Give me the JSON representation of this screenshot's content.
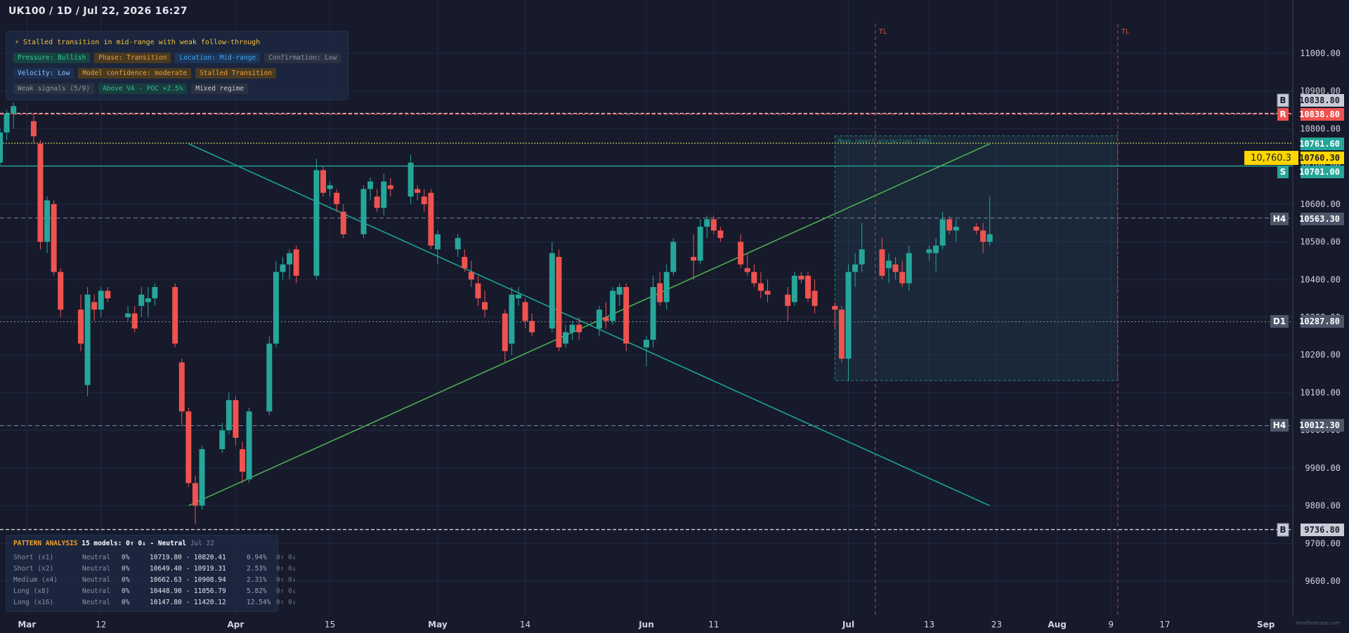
{
  "header": {
    "title": "UK100 / 1D / Jul 22, 2026 16:27"
  },
  "signal_panel": {
    "headline": "⚡ Stalled transition in mid-range with weak follow-through",
    "rows": [
      [
        {
          "text": "Pressure: Bullish",
          "style": "green"
        },
        {
          "text": "Phase: Transition",
          "style": "orange"
        },
        {
          "text": "Location: Mid-range",
          "style": "blue"
        },
        {
          "text": "Confirmation: Low",
          "style": "gray"
        }
      ],
      [
        {
          "text": "Velocity: Low",
          "style": "blue2"
        },
        {
          "text": "Model confidence: moderate",
          "style": "orange"
        },
        {
          "text": "Stalled Transition",
          "style": "orange"
        }
      ],
      [
        {
          "text": "Weak signals (5/9)",
          "style": "gray"
        },
        {
          "text": "Above VA - POC +2.5%",
          "style": "teal"
        },
        {
          "text": "Mixed regime",
          "style": "dark"
        }
      ]
    ]
  },
  "pattern_analysis": {
    "title": "PATTERN ANALYSIS",
    "models": "15 models: 0↑ 0↓ - Neutral",
    "date": "Jul 22",
    "rows": [
      {
        "label": "Short (x1)",
        "direction": "Neutral",
        "prob": "0%",
        "range": "10719.80 - 10820.41",
        "pct": "0.94%",
        "flags": "0↑ 0↓"
      },
      {
        "label": "Short (x2)",
        "direction": "Neutral",
        "prob": "0%",
        "range": "10649.40 - 10919.31",
        "pct": "2.53%",
        "flags": "0↑ 0↓"
      },
      {
        "label": "Medium (x4)",
        "direction": "Neutral",
        "prob": "0%",
        "range": "10662.63 - 10908.94",
        "pct": "2.31%",
        "flags": "0↑ 0↓"
      },
      {
        "label": "Long (x8)",
        "direction": "Neutral",
        "prob": "0%",
        "range": "10448.90 - 11056.79",
        "pct": "5.82%",
        "flags": "0↑ 0↓"
      },
      {
        "label": "Long (x16)",
        "direction": "Neutral",
        "prob": "0%",
        "range": "10147.80 - 11420.12",
        "pct": "12.54%",
        "flags": "0↑ 0↓"
      }
    ]
  },
  "watermark": "levelforecast.com",
  "colors": {
    "background": "#161a2b",
    "grid": "#222842",
    "bull": "#26a69a",
    "bear": "#ef5350",
    "trend": "#4caf50",
    "resistance": "#ef5350",
    "support": "#26a69a",
    "current": "#ffd600",
    "tl": "#c4433b"
  },
  "chart_data": {
    "type": "candlestick",
    "title": "UK100 / 1D / Jul 22, 2026 16:27",
    "y_axis": {
      "range": [
        9580,
        11100
      ],
      "ticks": [
        11000,
        10900,
        10800,
        10700,
        10600,
        10500,
        10400,
        10300,
        10200,
        10100,
        10000,
        9900,
        9800,
        9700,
        9600
      ],
      "tick_labels": [
        "11000.00",
        "10900.00",
        "10800.00",
        "10700.00",
        "10600.00",
        "10500.00",
        "10400.00",
        "10300.00",
        "10200.00",
        "10100.00",
        "10000.00",
        "9900.00",
        "9800.00",
        "9700.00",
        "9600.00"
      ]
    },
    "x_axis": {
      "range": [
        "2026-02-25",
        "2026-09-05"
      ],
      "ticks": [
        {
          "date": "2026-03-01",
          "label": "Mar"
        },
        {
          "date": "2026-03-12",
          "label": "12"
        },
        {
          "date": "2026-04-01",
          "label": "Apr"
        },
        {
          "date": "2026-04-15",
          "label": "15"
        },
        {
          "date": "2026-05-01",
          "label": "May"
        },
        {
          "date": "2026-05-14",
          "label": "14"
        },
        {
          "date": "2026-06-01",
          "label": "Jun"
        },
        {
          "date": "2026-06-11",
          "label": "11"
        },
        {
          "date": "2026-07-01",
          "label": "Jul"
        },
        {
          "date": "2026-07-13",
          "label": "13"
        },
        {
          "date": "2026-07-23",
          "label": "23"
        },
        {
          "date": "2026-08-01",
          "label": "Aug"
        },
        {
          "date": "2026-08-09",
          "label": "9"
        },
        {
          "date": "2026-08-17",
          "label": "17"
        },
        {
          "date": "2026-09-01",
          "label": "Sep"
        }
      ]
    },
    "grid": true,
    "candles": [
      [
        "2026-02-25",
        10710,
        10800,
        10700,
        10790
      ],
      [
        "2026-02-26",
        10790,
        10850,
        10770,
        10840
      ],
      [
        "2026-02-27",
        10840,
        10870,
        10800,
        10860
      ],
      [
        "2026-03-02",
        10820,
        10835,
        10760,
        10780
      ],
      [
        "2026-03-03",
        10760,
        10770,
        10480,
        10500
      ],
      [
        "2026-03-04",
        10500,
        10620,
        10470,
        10610
      ],
      [
        "2026-03-05",
        10600,
        10610,
        10410,
        10420
      ],
      [
        "2026-03-06",
        10420,
        10430,
        10300,
        10320
      ],
      [
        "2026-03-09",
        10320,
        10360,
        10210,
        10230
      ],
      [
        "2026-03-10",
        10120,
        10380,
        10090,
        10360
      ],
      [
        "2026-03-11",
        10340,
        10360,
        10290,
        10320
      ],
      [
        "2026-03-12",
        10320,
        10380,
        10300,
        10370
      ],
      [
        "2026-03-13",
        10370,
        10380,
        10340,
        10350
      ],
      [
        "2026-03-16",
        10300,
        10330,
        10290,
        10310
      ],
      [
        "2026-03-17",
        10310,
        10330,
        10260,
        10270
      ],
      [
        "2026-03-18",
        10330,
        10380,
        10300,
        10360
      ],
      [
        "2026-03-19",
        10340,
        10380,
        10300,
        10350
      ],
      [
        "2026-03-20",
        10350,
        10390,
        10330,
        10380
      ],
      [
        "2026-03-23",
        10380,
        10390,
        10220,
        10230
      ],
      [
        "2026-03-24",
        10180,
        10190,
        10010,
        10050
      ],
      [
        "2026-03-25",
        10050,
        10060,
        9850,
        9860
      ],
      [
        "2026-03-26",
        9860,
        9880,
        9750,
        9800
      ],
      [
        "2026-03-27",
        9800,
        9960,
        9790,
        9950
      ],
      [
        "2026-03-30",
        9950,
        10020,
        9940,
        10000
      ],
      [
        "2026-03-31",
        10000,
        10100,
        9990,
        10080
      ],
      [
        "2026-04-01",
        10080,
        10090,
        9960,
        9980
      ],
      [
        "2026-04-02",
        9950,
        9970,
        9860,
        9890
      ],
      [
        "2026-04-03",
        9870,
        10060,
        9860,
        10050
      ],
      [
        "2026-04-06",
        10050,
        10250,
        10040,
        10230
      ],
      [
        "2026-04-07",
        10230,
        10450,
        10220,
        10420
      ],
      [
        "2026-04-08",
        10420,
        10460,
        10400,
        10440
      ],
      [
        "2026-04-09",
        10440,
        10480,
        10400,
        10470
      ],
      [
        "2026-04-10",
        10480,
        10490,
        10390,
        10410
      ],
      [
        "2026-04-13",
        10410,
        10720,
        10400,
        10690
      ],
      [
        "2026-04-14",
        10690,
        10700,
        10620,
        10630
      ],
      [
        "2026-04-15",
        10640,
        10660,
        10620,
        10650
      ],
      [
        "2026-04-16",
        10630,
        10640,
        10580,
        10600
      ],
      [
        "2026-04-17",
        10580,
        10600,
        10510,
        10520
      ],
      [
        "2026-04-20",
        10520,
        10650,
        10510,
        10640
      ],
      [
        "2026-04-21",
        10640,
        10670,
        10610,
        10660
      ],
      [
        "2026-04-22",
        10620,
        10640,
        10580,
        10590
      ],
      [
        "2026-04-23",
        10590,
        10680,
        10570,
        10660
      ],
      [
        "2026-04-24",
        10650,
        10670,
        10620,
        10640
      ],
      [
        "2026-04-27",
        10620,
        10730,
        10600,
        10710
      ],
      [
        "2026-04-28",
        10640,
        10650,
        10610,
        10630
      ],
      [
        "2026-04-29",
        10620,
        10640,
        10580,
        10600
      ],
      [
        "2026-04-30",
        10630,
        10640,
        10480,
        10490
      ],
      [
        "2026-05-01",
        10480,
        10530,
        10440,
        10520
      ],
      [
        "2026-05-04",
        10480,
        10520,
        10460,
        10510
      ],
      [
        "2026-05-05",
        10460,
        10480,
        10420,
        10430
      ],
      [
        "2026-05-06",
        10420,
        10450,
        10380,
        10400
      ],
      [
        "2026-05-07",
        10390,
        10410,
        10330,
        10350
      ],
      [
        "2026-05-08",
        10340,
        10370,
        10300,
        10320
      ],
      [
        "2026-05-11",
        10310,
        10320,
        10180,
        10210
      ],
      [
        "2026-05-12",
        10230,
        10380,
        10200,
        10360
      ],
      [
        "2026-05-13",
        10350,
        10380,
        10330,
        10360
      ],
      [
        "2026-05-14",
        10340,
        10350,
        10270,
        10290
      ],
      [
        "2026-05-15",
        10290,
        10310,
        10250,
        10260
      ],
      [
        "2026-05-18",
        10270,
        10500,
        10260,
        10470
      ],
      [
        "2026-05-19",
        10460,
        10480,
        10210,
        10220
      ],
      [
        "2026-05-20",
        10230,
        10280,
        10220,
        10260
      ],
      [
        "2026-05-21",
        10260,
        10290,
        10240,
        10280
      ],
      [
        "2026-05-22",
        10280,
        10300,
        10240,
        10260
      ],
      [
        "2026-05-25",
        10270,
        10330,
        10250,
        10320
      ],
      [
        "2026-05-26",
        10300,
        10340,
        10270,
        10290
      ],
      [
        "2026-05-27",
        10290,
        10380,
        10280,
        10370
      ],
      [
        "2026-05-28",
        10360,
        10390,
        10330,
        10380
      ],
      [
        "2026-05-29",
        10380,
        10390,
        10210,
        10230
      ],
      [
        "2026-06-01",
        10220,
        10250,
        10170,
        10240
      ],
      [
        "2026-06-02",
        10240,
        10410,
        10220,
        10380
      ],
      [
        "2026-06-03",
        10390,
        10420,
        10330,
        10340
      ],
      [
        "2026-06-04",
        10340,
        10440,
        10320,
        10420
      ],
      [
        "2026-06-05",
        10420,
        10510,
        10410,
        10500
      ],
      [
        "2026-06-08",
        10460,
        10520,
        10400,
        10450
      ],
      [
        "2026-06-09",
        10450,
        10560,
        10440,
        10540
      ],
      [
        "2026-06-10",
        10540,
        10570,
        10510,
        10560
      ],
      [
        "2026-06-11",
        10560,
        10570,
        10520,
        10530
      ],
      [
        "2026-06-12",
        10530,
        10540,
        10500,
        10510
      ],
      [
        "2026-06-15",
        10500,
        10520,
        10430,
        10440
      ],
      [
        "2026-06-16",
        10430,
        10470,
        10410,
        10420
      ],
      [
        "2026-06-17",
        10420,
        10440,
        10380,
        10390
      ],
      [
        "2026-06-18",
        10390,
        10420,
        10350,
        10370
      ],
      [
        "2026-06-19",
        10370,
        10400,
        10340,
        10360
      ],
      [
        "2026-06-22",
        10360,
        10380,
        10290,
        10330
      ],
      [
        "2026-06-23",
        10340,
        10420,
        10330,
        10410
      ],
      [
        "2026-06-24",
        10410,
        10420,
        10390,
        10400
      ],
      [
        "2026-06-25",
        10410,
        10420,
        10340,
        10350
      ],
      [
        "2026-06-26",
        10370,
        10400,
        10310,
        10330
      ],
      [
        "2026-06-29",
        10330,
        10340,
        10270,
        10320
      ],
      [
        "2026-06-30",
        10320,
        10330,
        10180,
        10190
      ],
      [
        "2026-07-01",
        10190,
        10440,
        10130,
        10420
      ],
      [
        "2026-07-02",
        10420,
        10470,
        10380,
        10440
      ],
      [
        "2026-07-03",
        10440,
        10550,
        10420,
        10480
      ],
      [
        "2026-07-06",
        10480,
        10510,
        10400,
        10410
      ],
      [
        "2026-07-07",
        10430,
        10470,
        10390,
        10450
      ],
      [
        "2026-07-08",
        10440,
        10460,
        10400,
        10420
      ],
      [
        "2026-07-09",
        10420,
        10450,
        10380,
        10390
      ],
      [
        "2026-07-10",
        10390,
        10490,
        10370,
        10470
      ],
      [
        "2026-07-13",
        10470,
        10490,
        10450,
        10480
      ],
      [
        "2026-07-14",
        10470,
        10510,
        10420,
        10490
      ],
      [
        "2026-07-15",
        10490,
        10580,
        10480,
        10560
      ],
      [
        "2026-07-16",
        10560,
        10570,
        10520,
        10530
      ],
      [
        "2026-07-17",
        10530,
        10560,
        10500,
        10540
      ],
      [
        "2026-07-20",
        10540,
        10550,
        10520,
        10530
      ],
      [
        "2026-07-21",
        10530,
        10550,
        10470,
        10500
      ],
      [
        "2026-07-22",
        10500,
        10620,
        10490,
        10520
      ]
    ],
    "horizontal_lines": [
      {
        "label": "B",
        "value": 10838.8,
        "style": "dashed-white"
      },
      {
        "label": "R",
        "value": 10838.8,
        "style": "dashed-red"
      },
      {
        "label": "",
        "value": 10761.6,
        "style": "dotted-yellow"
      },
      {
        "label": "S",
        "value": 10701.0,
        "style": "solid-teal"
      },
      {
        "label": "H4",
        "value": 10563.3,
        "style": "dashed-gray"
      },
      {
        "label": "D1",
        "value": 10287.8,
        "style": "dotted-gray"
      },
      {
        "label": "H4",
        "value": 10012.3,
        "style": "dashed-gray"
      },
      {
        "label": "B",
        "value": 9736.8,
        "style": "dashed-white"
      }
    ],
    "axis_tags": [
      {
        "side": "B",
        "value": "10838.80",
        "style": "silver"
      },
      {
        "side": "R",
        "value": "10838.80",
        "style": "red"
      },
      {
        "side": "",
        "value": "10761.60",
        "style": "teal"
      },
      {
        "side": "",
        "value": "10760.30",
        "style": "yellow",
        "current": "10,760.3"
      },
      {
        "side": "S",
        "value": "10701.00",
        "style": "teal"
      },
      {
        "side": "H4",
        "value": "10563.30",
        "style": "gray"
      },
      {
        "side": "D1",
        "value": "10287.80",
        "style": "gray"
      },
      {
        "side": "H4",
        "value": "10012.30",
        "style": "gray"
      },
      {
        "side": "B",
        "value": "9736.80",
        "style": "silver"
      }
    ],
    "trend_lines": [
      {
        "from": [
          "2026-03-25",
          9800
        ],
        "to": [
          "2026-07-22",
          10760
        ],
        "color": "green"
      },
      {
        "from": [
          "2026-03-25",
          10760
        ],
        "to": [
          "2026-07-22",
          9800
        ],
        "color": "teal"
      }
    ],
    "projection_zone": {
      "x": [
        "2026-06-29",
        "2026-08-10"
      ],
      "y": [
        10132,
        10781
      ],
      "label": "Mean revert projection (50%)"
    },
    "vertical_markers": [
      {
        "date": "2026-07-05",
        "label": "TL"
      },
      {
        "date": "2026-08-10",
        "label": "TL"
      }
    ]
  }
}
